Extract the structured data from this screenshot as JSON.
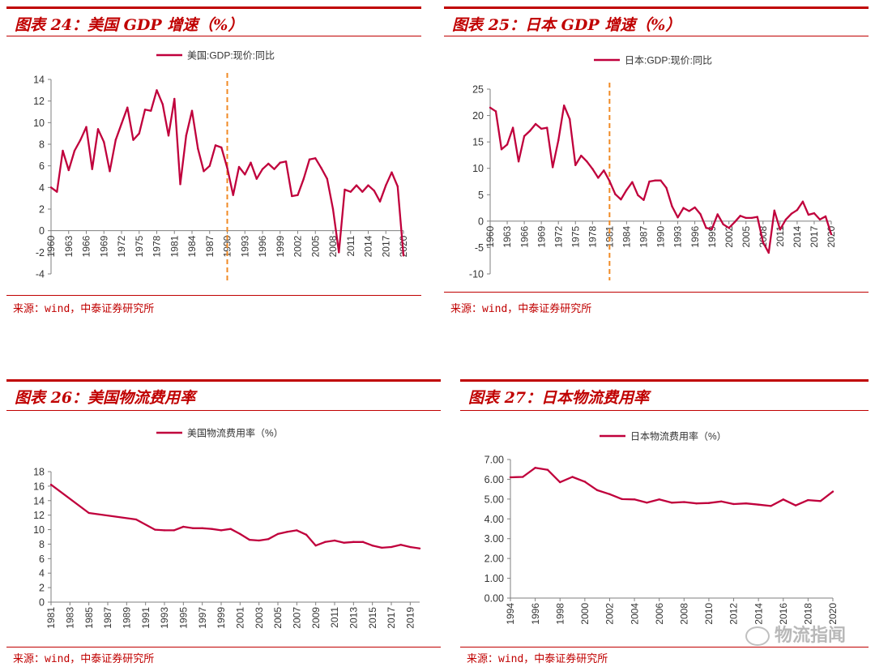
{
  "colors": {
    "accent": "#c00000",
    "series": "#c0003c",
    "marker": "#f08a24",
    "axis": "#7f7f7f"
  },
  "panels": [
    {
      "title": "图表 24：美国 GDP 增速（%）",
      "source": "来源：wind，中泰证券研究所"
    },
    {
      "title": "图表 25：日本 GDP 增速（%）",
      "source": "来源：wind，中泰证券研究所"
    },
    {
      "title": "图表 26：美国物流费用率",
      "source": "来源：wind，中泰证券研究所"
    },
    {
      "title": "图表 27：日本物流费用率",
      "source": "来源：wind，中泰证券研究所"
    }
  ],
  "watermark": "物流指闻",
  "chart_data": [
    {
      "type": "line",
      "legend": "美国:GDP:现价:同比",
      "legend_position": "top",
      "x_tick_labels": [
        "1960",
        "1963",
        "1966",
        "1969",
        "1972",
        "1975",
        "1978",
        "1981",
        "1984",
        "1987",
        "1990",
        "1993",
        "1996",
        "1999",
        "2002",
        "2005",
        "2008",
        "2011",
        "2014",
        "2017",
        "2020"
      ],
      "y_tick_labels": [
        "-4",
        "-2",
        "0",
        "2",
        "4",
        "6",
        "8",
        "10",
        "12",
        "14"
      ],
      "xlim": [
        1960,
        2020
      ],
      "ylim": [
        -4,
        14
      ],
      "y_ticks": [
        -4,
        -2,
        0,
        2,
        4,
        6,
        8,
        10,
        12,
        14
      ],
      "x_ticks": [
        1960,
        1963,
        1966,
        1969,
        1972,
        1975,
        1978,
        1981,
        1984,
        1987,
        1990,
        1993,
        1996,
        1999,
        2002,
        2005,
        2008,
        2011,
        2014,
        2017,
        2020
      ],
      "marker_line_x": 1990,
      "x": [
        1960,
        1961,
        1962,
        1963,
        1964,
        1965,
        1966,
        1967,
        1968,
        1969,
        1970,
        1971,
        1972,
        1973,
        1974,
        1975,
        1976,
        1977,
        1978,
        1979,
        1980,
        1981,
        1982,
        1983,
        1984,
        1985,
        1986,
        1987,
        1988,
        1989,
        1990,
        1991,
        1992,
        1993,
        1994,
        1995,
        1996,
        1997,
        1998,
        1999,
        2000,
        2001,
        2002,
        2003,
        2004,
        2005,
        2006,
        2007,
        2008,
        2009,
        2010,
        2011,
        2012,
        2013,
        2014,
        2015,
        2016,
        2017,
        2018,
        2019,
        2020
      ],
      "y": [
        4.0,
        3.6,
        7.4,
        5.6,
        7.4,
        8.4,
        9.6,
        5.7,
        9.4,
        8.2,
        5.5,
        8.4,
        9.9,
        11.4,
        8.4,
        9.0,
        11.2,
        11.1,
        13.0,
        11.7,
        8.8,
        12.2,
        4.3,
        8.8,
        11.1,
        7.6,
        5.5,
        6.0,
        7.9,
        7.7,
        5.8,
        3.3,
        5.9,
        5.2,
        6.3,
        4.8,
        5.7,
        6.2,
        5.7,
        6.3,
        6.4,
        3.2,
        3.3,
        4.8,
        6.6,
        6.7,
        5.8,
        4.8,
        2.0,
        -2.0,
        3.8,
        3.6,
        4.2,
        3.6,
        4.2,
        3.7,
        2.7,
        4.2,
        5.4,
        4.1,
        -2.3
      ]
    },
    {
      "type": "line",
      "legend": "日本:GDP:现价:同比",
      "legend_position": "top",
      "x_tick_labels": [
        "1960",
        "1963",
        "1966",
        "1969",
        "1972",
        "1975",
        "1978",
        "1981",
        "1984",
        "1987",
        "1990",
        "1993",
        "1996",
        "1999",
        "2002",
        "2005",
        "2008",
        "2011",
        "2014",
        "2017",
        "2020"
      ],
      "y_tick_labels": [
        "-10",
        "-5",
        "0",
        "5",
        "10",
        "15",
        "20",
        "25"
      ],
      "xlim": [
        1960,
        2020
      ],
      "ylim": [
        -10,
        25
      ],
      "y_ticks": [
        -10,
        -5,
        0,
        5,
        10,
        15,
        20,
        25
      ],
      "x_ticks": [
        1960,
        1963,
        1966,
        1969,
        1972,
        1975,
        1978,
        1981,
        1984,
        1987,
        1990,
        1993,
        1996,
        1999,
        2002,
        2005,
        2008,
        2011,
        2014,
        2017,
        2020
      ],
      "marker_line_x": 1981,
      "x": [
        1960,
        1961,
        1962,
        1963,
        1964,
        1965,
        1966,
        1967,
        1968,
        1969,
        1970,
        1971,
        1972,
        1973,
        1974,
        1975,
        1976,
        1977,
        1978,
        1979,
        1980,
        1981,
        1982,
        1983,
        1984,
        1985,
        1986,
        1987,
        1988,
        1989,
        1990,
        1991,
        1992,
        1993,
        1994,
        1995,
        1996,
        1997,
        1998,
        1999,
        2000,
        2001,
        2002,
        2003,
        2004,
        2005,
        2006,
        2007,
        2008,
        2009,
        2010,
        2011,
        2012,
        2013,
        2014,
        2015,
        2016,
        2017,
        2018,
        2019,
        2020
      ],
      "y": [
        21.5,
        20.8,
        13.6,
        14.5,
        17.7,
        11.3,
        16.1,
        17.1,
        18.4,
        17.5,
        17.7,
        10.2,
        15.3,
        21.9,
        19.3,
        10.6,
        12.4,
        11.3,
        9.9,
        8.2,
        9.6,
        7.6,
        5.1,
        4.1,
        5.9,
        7.4,
        4.9,
        4.0,
        7.5,
        7.7,
        7.7,
        6.3,
        2.8,
        0.7,
        2.5,
        1.9,
        2.6,
        1.3,
        -1.3,
        -1.5,
        1.3,
        -0.6,
        -1.3,
        -0.2,
        1.0,
        0.6,
        0.6,
        0.8,
        -4.0,
        -6.0,
        2.0,
        -1.6,
        0.3,
        1.4,
        2.1,
        3.7,
        1.2,
        1.5,
        0.3,
        0.9,
        -2.5
      ]
    },
    {
      "type": "line",
      "legend": "美国物流费用率（%）",
      "legend_position": "top",
      "x_tick_labels": [
        "1981",
        "1983",
        "1985",
        "1987",
        "1989",
        "1991",
        "1993",
        "1995",
        "1997",
        "1999",
        "2001",
        "2003",
        "2005",
        "2007",
        "2009",
        "2011",
        "2013",
        "2015",
        "2017",
        "2019"
      ],
      "y_tick_labels": [
        "0",
        "2",
        "4",
        "6",
        "8",
        "10",
        "12",
        "14",
        "16",
        "18"
      ],
      "xlim": [
        1981,
        2020
      ],
      "ylim": [
        0,
        18
      ],
      "y_ticks": [
        0,
        2,
        4,
        6,
        8,
        10,
        12,
        14,
        16,
        18
      ],
      "x_ticks": [
        1981,
        1983,
        1985,
        1987,
        1989,
        1991,
        1993,
        1995,
        1997,
        1999,
        2001,
        2003,
        2005,
        2007,
        2009,
        2011,
        2013,
        2015,
        2017,
        2019
      ],
      "x": [
        1981,
        1985,
        1990,
        1992,
        1993,
        1994,
        1995,
        1996,
        1997,
        1998,
        1999,
        2000,
        2001,
        2002,
        2003,
        2004,
        2005,
        2006,
        2007,
        2008,
        2009,
        2010,
        2011,
        2012,
        2013,
        2014,
        2015,
        2016,
        2017,
        2018,
        2019,
        2020
      ],
      "y": [
        16.2,
        12.3,
        11.4,
        10.0,
        9.9,
        9.9,
        10.4,
        10.2,
        10.2,
        10.1,
        9.9,
        10.1,
        9.4,
        8.6,
        8.5,
        8.7,
        9.4,
        9.7,
        9.9,
        9.3,
        7.8,
        8.3,
        8.5,
        8.2,
        8.3,
        8.3,
        7.8,
        7.5,
        7.6,
        7.9,
        7.6,
        7.4
      ]
    },
    {
      "type": "line",
      "legend": "日本物流费用率（%）",
      "legend_position": "top",
      "x_tick_labels": [
        "1994",
        "1996",
        "1998",
        "2000",
        "2002",
        "2004",
        "2006",
        "2008",
        "2010",
        "2012",
        "2014",
        "2016",
        "2018",
        "2020"
      ],
      "y_tick_labels": [
        "0.00",
        "1.00",
        "2.00",
        "3.00",
        "4.00",
        "5.00",
        "6.00",
        "7.00"
      ],
      "xlim": [
        1994,
        2020
      ],
      "ylim": [
        0,
        7
      ],
      "y_ticks": [
        0,
        1,
        2,
        3,
        4,
        5,
        6,
        7
      ],
      "x_ticks": [
        1994,
        1996,
        1998,
        2000,
        2002,
        2004,
        2006,
        2008,
        2010,
        2012,
        2014,
        2016,
        2018,
        2020
      ],
      "x": [
        1994,
        1995,
        1996,
        1997,
        1998,
        1999,
        2000,
        2001,
        2002,
        2003,
        2004,
        2005,
        2006,
        2007,
        2008,
        2009,
        2010,
        2011,
        2012,
        2013,
        2014,
        2015,
        2016,
        2017,
        2018,
        2019,
        2020
      ],
      "y": [
        6.1,
        6.12,
        6.58,
        6.48,
        5.85,
        6.12,
        5.88,
        5.45,
        5.25,
        5.0,
        4.98,
        4.82,
        4.98,
        4.82,
        4.85,
        4.78,
        4.8,
        4.88,
        4.75,
        4.78,
        4.72,
        4.65,
        4.98,
        4.68,
        4.95,
        4.9,
        5.38
      ]
    }
  ]
}
